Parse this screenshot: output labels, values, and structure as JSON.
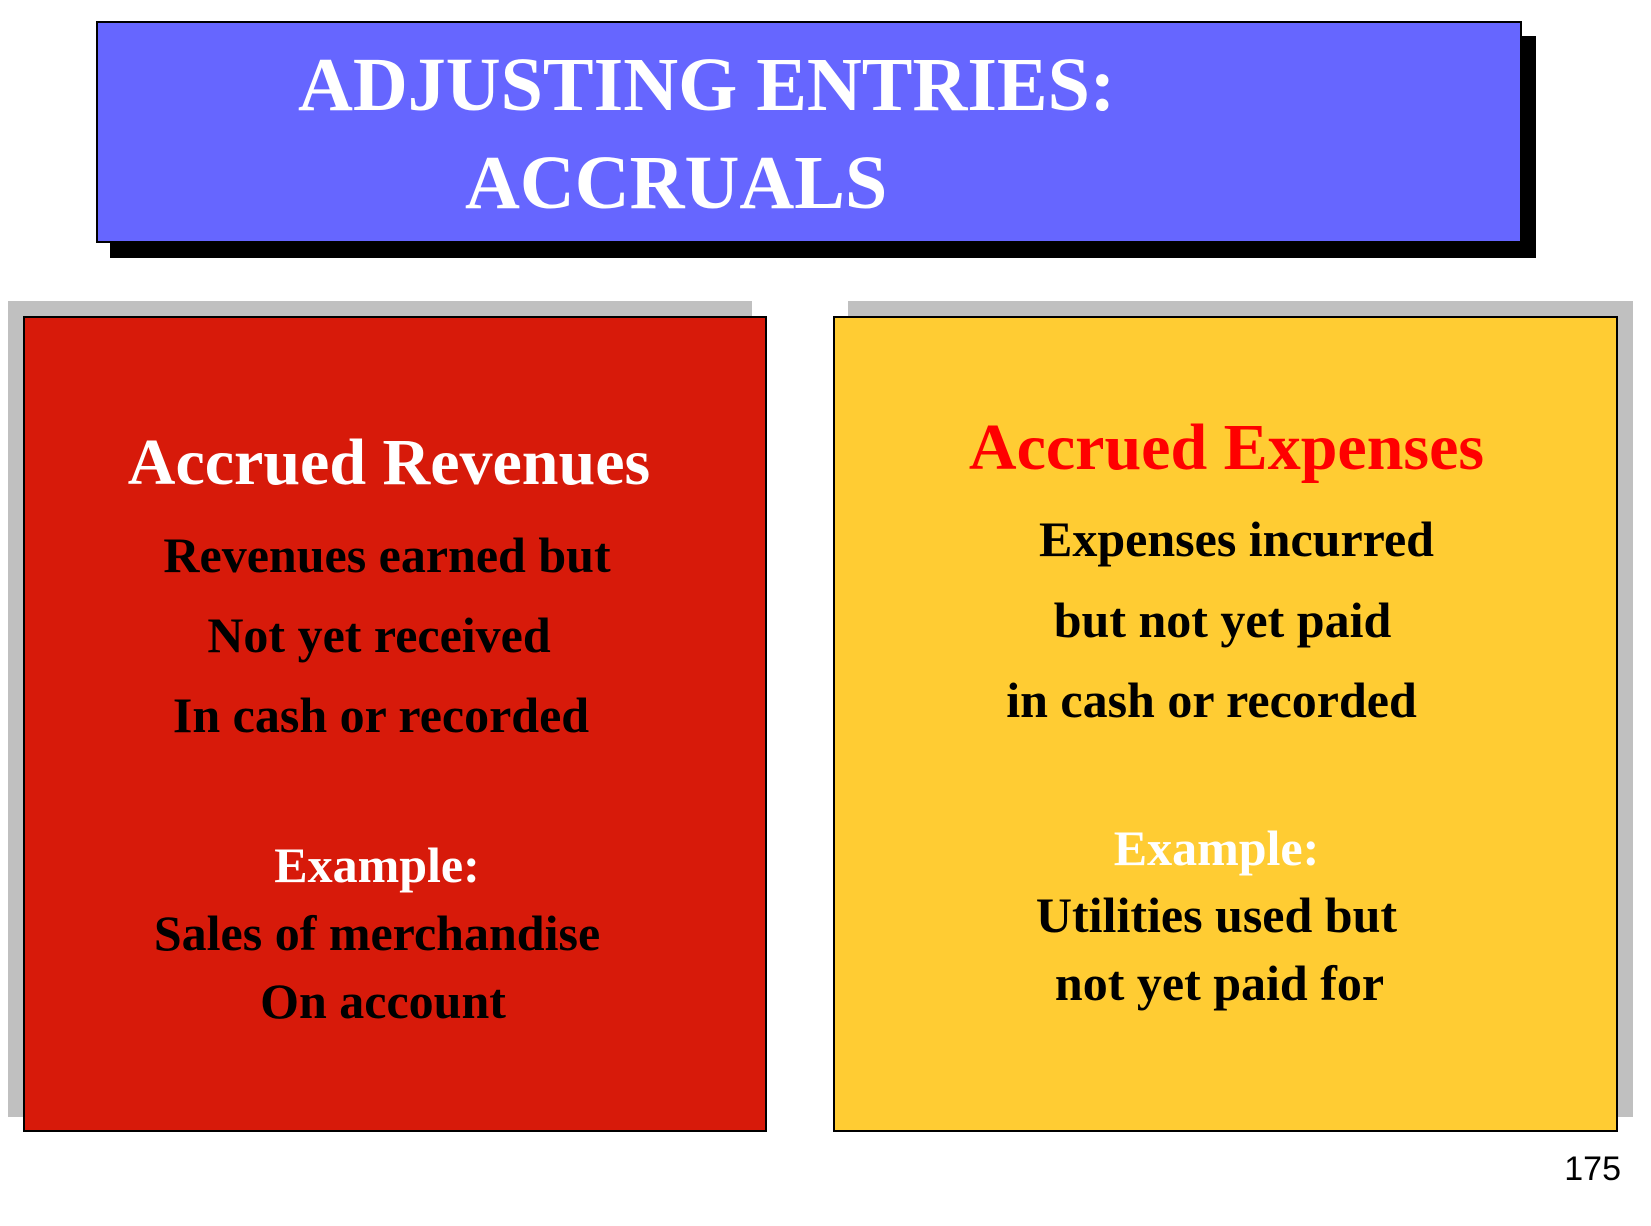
{
  "title": {
    "line1": "ADJUSTING ENTRIES:",
    "line2": "ACCRUALS"
  },
  "left_panel": {
    "heading": "Accrued Revenues",
    "description": [
      "Revenues earned but",
      "Not yet received",
      "In cash or recorded"
    ],
    "example_label": "Example:",
    "example": [
      "Sales of merchandise",
      "On account"
    ]
  },
  "right_panel": {
    "heading": "Accrued Expenses",
    "description": [
      "Expenses incurred",
      "but not yet paid",
      "in cash or recorded"
    ],
    "example_label": "Example:",
    "example": [
      "Utilities used but",
      "not yet paid for"
    ]
  },
  "page_number": "175",
  "colors": {
    "title_background": "#6666ff",
    "left_panel_background": "#d71a0a",
    "right_panel_background": "#ffcc33",
    "right_heading": "#ff0000"
  }
}
